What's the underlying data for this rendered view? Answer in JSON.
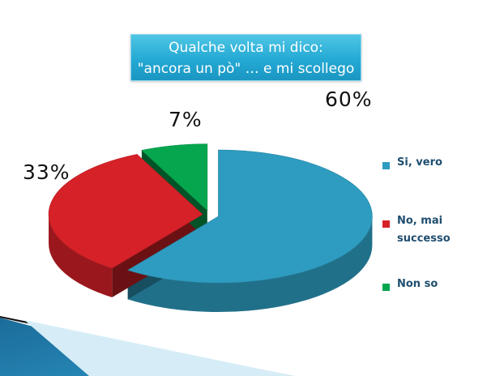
{
  "title": {
    "line1": "Qualche volta mi dico:",
    "line2": "\"ancora un pò\" … e mi scollego"
  },
  "chart_data": {
    "type": "pie",
    "title": "Qualche volta mi dico: \"ancora un pò\" … e mi scollego",
    "style": "3d-exploded",
    "categories": [
      "Si, vero",
      "No, mai successo",
      "Non so"
    ],
    "values": [
      60,
      33,
      7
    ],
    "data_labels": [
      "60%",
      "33%",
      "7%"
    ],
    "colors": [
      "#2e9cc0",
      "#d62128",
      "#06a64f"
    ],
    "legend_position": "right"
  }
}
